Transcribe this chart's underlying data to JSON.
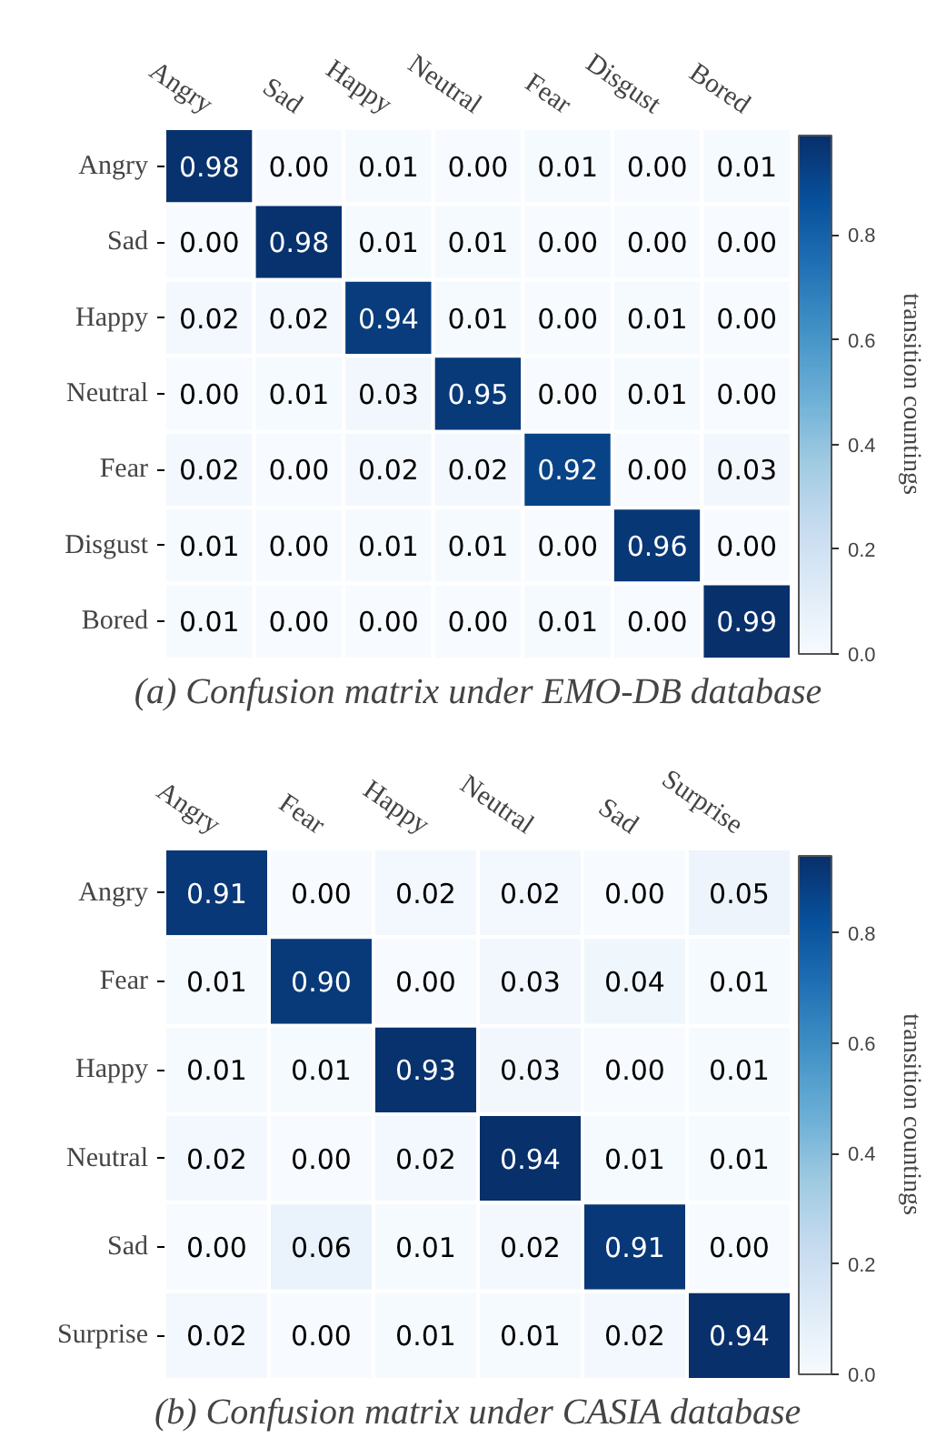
{
  "chart_data": [
    {
      "type": "heatmap",
      "categories": [
        "Angry",
        "Sad",
        "Happy",
        "Neutral",
        "Fear",
        "Disgust",
        "Bored"
      ],
      "y_categories": [
        "Angry",
        "Sad",
        "Happy",
        "Neutral",
        "Fear",
        "Disgust",
        "Bored"
      ],
      "cells": [
        [
          0.98,
          0.0,
          0.01,
          0.0,
          0.01,
          0.0,
          0.01
        ],
        [
          0.0,
          0.98,
          0.01,
          0.01,
          0.0,
          0.0,
          0.0
        ],
        [
          0.02,
          0.02,
          0.94,
          0.01,
          0.0,
          0.01,
          0.0
        ],
        [
          0.0,
          0.01,
          0.03,
          0.95,
          0.0,
          0.01,
          0.0
        ],
        [
          0.02,
          0.0,
          0.02,
          0.02,
          0.92,
          0.0,
          0.03
        ],
        [
          0.01,
          0.0,
          0.01,
          0.01,
          0.0,
          0.96,
          0.0
        ],
        [
          0.01,
          0.0,
          0.0,
          0.0,
          0.01,
          0.0,
          0.99
        ]
      ],
      "cell_labels": [
        [
          "0.98",
          "0.00",
          "0.01",
          "0.00",
          "0.01",
          "0.00",
          "0.01"
        ],
        [
          "0.00",
          "0.98",
          "0.01",
          "0.01",
          "0.00",
          "0.00",
          "0.00"
        ],
        [
          "0.02",
          "0.02",
          "0.94",
          "0.01",
          "0.00",
          "0.01",
          "0.00"
        ],
        [
          "0.00",
          "0.01",
          "0.03",
          "0.95",
          "0.00",
          "0.01",
          "0.00"
        ],
        [
          "0.02",
          "0.00",
          "0.02",
          "0.02",
          "0.92",
          "0.00",
          "0.03"
        ],
        [
          "0.01",
          "0.00",
          "0.01",
          "0.01",
          "0.00",
          "0.96",
          "0.00"
        ],
        [
          "0.01",
          "0.00",
          "0.00",
          "0.00",
          "0.01",
          "0.00",
          "0.99"
        ]
      ],
      "clim": [
        0,
        0.99
      ],
      "cticks": [
        {
          "value": 0,
          "label": "0.0"
        },
        0.2,
        0.4,
        0.6,
        0.8
      ],
      "clabel": "transition countings",
      "annotations": [
        "(a) Confusion matrix under EMO-DB database"
      ]
    },
    {
      "type": "heatmap",
      "categories": [
        "Angry",
        "Fear",
        "Happy",
        "Neutral",
        "Sad",
        "Surprise"
      ],
      "y_categories": [
        "Angry",
        "Fear",
        "Happy",
        "Neutral",
        "Sad",
        "Surprise"
      ],
      "cells": [
        [
          0.91,
          0.0,
          0.02,
          0.02,
          0.0,
          0.05
        ],
        [
          0.01,
          0.9,
          0.0,
          0.03,
          0.04,
          0.01
        ],
        [
          0.01,
          0.01,
          0.93,
          0.03,
          0.0,
          0.01
        ],
        [
          0.02,
          0.0,
          0.02,
          0.94,
          0.01,
          0.01
        ],
        [
          0.0,
          0.06,
          0.01,
          0.02,
          0.91,
          0.0
        ],
        [
          0.02,
          0.0,
          0.01,
          0.01,
          0.02,
          0.94
        ]
      ],
      "cell_labels": [
        [
          "0.91",
          "0.00",
          "0.02",
          "0.02",
          "0.00",
          "0.05"
        ],
        [
          "0.01",
          "0.90",
          "0.00",
          "0.03",
          "0.04",
          "0.01"
        ],
        [
          "0.01",
          "0.01",
          "0.93",
          "0.03",
          "0.00",
          "0.01"
        ],
        [
          "0.02",
          "0.00",
          "0.02",
          "0.94",
          "0.01",
          "0.01"
        ],
        [
          "0.00",
          "0.06",
          "0.01",
          "0.02",
          "0.91",
          "0.00"
        ],
        [
          "0.02",
          "0.00",
          "0.01",
          "0.01",
          "0.02",
          "0.94"
        ]
      ],
      "clim": [
        0,
        0.94
      ],
      "cticks": [
        {
          "value": 0,
          "label": "0.0"
        },
        0.2,
        0.4,
        0.6,
        0.8
      ],
      "clabel": "transition countings",
      "annotations": [
        "(b) Confusion matrix under CASIA database"
      ]
    }
  ]
}
